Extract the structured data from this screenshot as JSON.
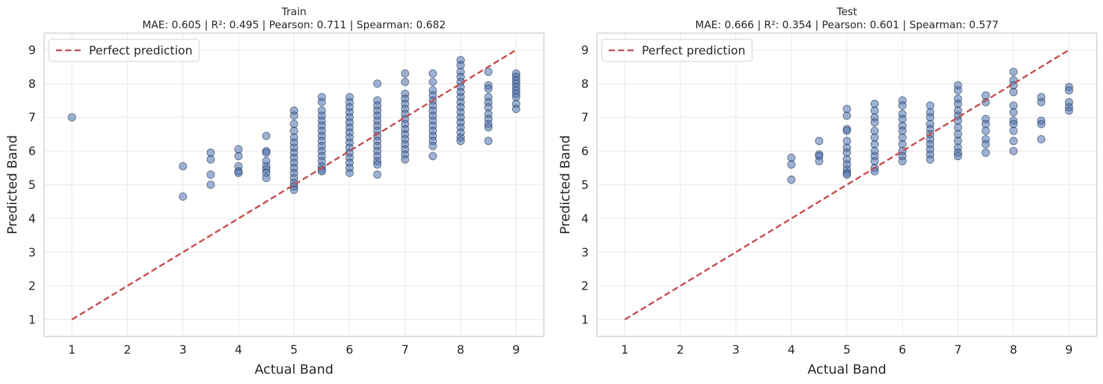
{
  "chart_data": [
    {
      "type": "scatter",
      "title": "Train",
      "subtitle": "MAE: 0.605 | R²: 0.495 | Pearson: 0.711 | Spearman: 0.682",
      "xlabel": "Actual Band",
      "ylabel": "Predicted Band",
      "xlim": [
        0.5,
        9.5
      ],
      "ylim": [
        0.5,
        9.5
      ],
      "xticks": [
        1,
        2,
        3,
        4,
        5,
        6,
        7,
        8,
        9
      ],
      "yticks": [
        1,
        2,
        3,
        4,
        5,
        6,
        7,
        8,
        9
      ],
      "grid": true,
      "legend": {
        "position": "top-left",
        "entries": [
          "Perfect prediction"
        ]
      },
      "reference_line": {
        "name": "Perfect prediction",
        "x": [
          1,
          9
        ],
        "y": [
          1,
          9
        ],
        "color": "#c44e52",
        "style": "dashed"
      },
      "point_color": "#4c72b0",
      "points": [
        [
          1,
          7.0
        ],
        [
          3,
          5.55
        ],
        [
          3,
          4.65
        ],
        [
          3.5,
          5.95
        ],
        [
          3.5,
          5.75
        ],
        [
          3.5,
          5.3
        ],
        [
          3.5,
          5.0
        ],
        [
          4,
          6.05
        ],
        [
          4,
          5.85
        ],
        [
          4,
          5.55
        ],
        [
          4,
          5.4
        ],
        [
          4,
          5.35
        ],
        [
          4.5,
          6.45
        ],
        [
          4.5,
          6.0
        ],
        [
          4.5,
          5.95
        ],
        [
          4.5,
          5.7
        ],
        [
          4.5,
          5.55
        ],
        [
          4.5,
          5.45
        ],
        [
          4.5,
          5.35
        ],
        [
          4.5,
          5.2
        ],
        [
          5,
          7.2
        ],
        [
          5,
          7.05
        ],
        [
          5,
          6.8
        ],
        [
          5,
          6.6
        ],
        [
          5,
          6.4
        ],
        [
          5,
          6.25
        ],
        [
          5,
          6.1
        ],
        [
          5,
          5.95
        ],
        [
          5,
          5.8
        ],
        [
          5,
          5.65
        ],
        [
          5,
          5.5
        ],
        [
          5,
          5.35
        ],
        [
          5,
          5.2
        ],
        [
          5,
          5.05
        ],
        [
          5,
          4.95
        ],
        [
          5,
          4.85
        ],
        [
          5.5,
          7.6
        ],
        [
          5.5,
          7.45
        ],
        [
          5.5,
          7.2
        ],
        [
          5.5,
          7.05
        ],
        [
          5.5,
          6.9
        ],
        [
          5.5,
          6.75
        ],
        [
          5.5,
          6.6
        ],
        [
          5.5,
          6.45
        ],
        [
          5.5,
          6.3
        ],
        [
          5.5,
          6.15
        ],
        [
          5.5,
          6.0
        ],
        [
          5.5,
          5.85
        ],
        [
          5.5,
          5.7
        ],
        [
          5.5,
          5.55
        ],
        [
          5.5,
          5.45
        ],
        [
          5.5,
          5.4
        ],
        [
          6,
          7.6
        ],
        [
          6,
          7.45
        ],
        [
          6,
          7.3
        ],
        [
          6,
          7.15
        ],
        [
          6,
          7.0
        ],
        [
          6,
          6.85
        ],
        [
          6,
          6.7
        ],
        [
          6,
          6.55
        ],
        [
          6,
          6.4
        ],
        [
          6,
          6.25
        ],
        [
          6,
          6.1
        ],
        [
          6,
          5.95
        ],
        [
          6,
          5.8
        ],
        [
          6,
          5.65
        ],
        [
          6,
          5.5
        ],
        [
          6,
          5.35
        ],
        [
          6.5,
          8.0
        ],
        [
          6.5,
          7.5
        ],
        [
          6.5,
          7.35
        ],
        [
          6.5,
          7.2
        ],
        [
          6.5,
          7.05
        ],
        [
          6.5,
          6.9
        ],
        [
          6.5,
          6.75
        ],
        [
          6.5,
          6.6
        ],
        [
          6.5,
          6.45
        ],
        [
          6.5,
          6.3
        ],
        [
          6.5,
          6.15
        ],
        [
          6.5,
          6.0
        ],
        [
          6.5,
          5.85
        ],
        [
          6.5,
          5.7
        ],
        [
          6.5,
          5.6
        ],
        [
          6.5,
          5.3
        ],
        [
          7,
          8.3
        ],
        [
          7,
          8.05
        ],
        [
          7,
          7.7
        ],
        [
          7,
          7.55
        ],
        [
          7,
          7.4
        ],
        [
          7,
          7.25
        ],
        [
          7,
          7.1
        ],
        [
          7,
          6.95
        ],
        [
          7,
          6.8
        ],
        [
          7,
          6.65
        ],
        [
          7,
          6.5
        ],
        [
          7,
          6.35
        ],
        [
          7,
          6.2
        ],
        [
          7,
          6.05
        ],
        [
          7,
          5.9
        ],
        [
          7,
          5.75
        ],
        [
          7.5,
          8.3
        ],
        [
          7.5,
          8.05
        ],
        [
          7.5,
          7.8
        ],
        [
          7.5,
          7.65
        ],
        [
          7.5,
          7.5
        ],
        [
          7.5,
          7.35
        ],
        [
          7.5,
          7.2
        ],
        [
          7.5,
          7.05
        ],
        [
          7.5,
          6.9
        ],
        [
          7.5,
          6.75
        ],
        [
          7.5,
          6.6
        ],
        [
          7.5,
          6.45
        ],
        [
          7.5,
          6.3
        ],
        [
          7.5,
          6.15
        ],
        [
          7.5,
          5.85
        ],
        [
          8,
          8.7
        ],
        [
          8,
          8.55
        ],
        [
          8,
          8.35
        ],
        [
          8,
          8.2
        ],
        [
          8,
          8.05
        ],
        [
          8,
          7.9
        ],
        [
          8,
          7.75
        ],
        [
          8,
          7.6
        ],
        [
          8,
          7.45
        ],
        [
          8,
          7.3
        ],
        [
          8,
          7.15
        ],
        [
          8,
          7.0
        ],
        [
          8,
          6.85
        ],
        [
          8,
          6.7
        ],
        [
          8,
          6.55
        ],
        [
          8,
          6.4
        ],
        [
          8,
          6.3
        ],
        [
          8.5,
          8.35
        ],
        [
          8.5,
          7.95
        ],
        [
          8.5,
          7.85
        ],
        [
          8.5,
          7.6
        ],
        [
          8.5,
          7.45
        ],
        [
          8.5,
          7.3
        ],
        [
          8.5,
          7.1
        ],
        [
          8.5,
          6.95
        ],
        [
          8.5,
          6.8
        ],
        [
          8.5,
          6.7
        ],
        [
          8.5,
          6.3
        ],
        [
          9,
          8.3
        ],
        [
          9,
          8.2
        ],
        [
          9,
          8.1
        ],
        [
          9,
          8.0
        ],
        [
          9,
          7.9
        ],
        [
          9,
          7.8
        ],
        [
          9,
          7.7
        ],
        [
          9,
          7.6
        ],
        [
          9,
          7.4
        ],
        [
          9,
          7.25
        ]
      ]
    },
    {
      "type": "scatter",
      "title": "Test",
      "subtitle": "MAE: 0.666 | R²: 0.354 | Pearson: 0.601 | Spearman: 0.577",
      "xlabel": "Actual Band",
      "ylabel": "Predicted Band",
      "xlim": [
        0.5,
        9.5
      ],
      "ylim": [
        0.5,
        9.5
      ],
      "xticks": [
        1,
        2,
        3,
        4,
        5,
        6,
        7,
        8,
        9
      ],
      "yticks": [
        1,
        2,
        3,
        4,
        5,
        6,
        7,
        8,
        9
      ],
      "grid": true,
      "legend": {
        "position": "top-left",
        "entries": [
          "Perfect prediction"
        ]
      },
      "reference_line": {
        "name": "Perfect prediction",
        "x": [
          1,
          9
        ],
        "y": [
          1,
          9
        ],
        "color": "#c44e52",
        "style": "dashed"
      },
      "point_color": "#4c72b0",
      "points": [
        [
          4,
          5.8
        ],
        [
          4,
          5.6
        ],
        [
          4,
          5.15
        ],
        [
          4.5,
          6.3
        ],
        [
          4.5,
          5.9
        ],
        [
          4.5,
          5.85
        ],
        [
          4.5,
          5.7
        ],
        [
          5,
          7.25
        ],
        [
          5,
          7.05
        ],
        [
          5,
          6.65
        ],
        [
          5,
          6.6
        ],
        [
          5,
          6.3
        ],
        [
          5,
          6.1
        ],
        [
          5,
          5.95
        ],
        [
          5,
          5.75
        ],
        [
          5,
          5.6
        ],
        [
          5,
          5.45
        ],
        [
          5,
          5.35
        ],
        [
          5,
          5.3
        ],
        [
          5.5,
          7.4
        ],
        [
          5.5,
          7.2
        ],
        [
          5.5,
          7.0
        ],
        [
          5.5,
          6.85
        ],
        [
          5.5,
          6.6
        ],
        [
          5.5,
          6.4
        ],
        [
          5.5,
          6.2
        ],
        [
          5.5,
          6.0
        ],
        [
          5.5,
          5.85
        ],
        [
          5.5,
          5.7
        ],
        [
          5.5,
          5.5
        ],
        [
          5.5,
          5.4
        ],
        [
          6,
          7.5
        ],
        [
          6,
          7.35
        ],
        [
          6,
          7.1
        ],
        [
          6,
          6.95
        ],
        [
          6,
          6.75
        ],
        [
          6,
          6.6
        ],
        [
          6,
          6.4
        ],
        [
          6,
          6.2
        ],
        [
          6,
          6.0
        ],
        [
          6,
          5.85
        ],
        [
          6,
          5.7
        ],
        [
          6.5,
          7.35
        ],
        [
          6.5,
          7.15
        ],
        [
          6.5,
          7.0
        ],
        [
          6.5,
          6.8
        ],
        [
          6.5,
          6.65
        ],
        [
          6.5,
          6.5
        ],
        [
          6.5,
          6.35
        ],
        [
          6.5,
          6.2
        ],
        [
          6.5,
          6.05
        ],
        [
          6.5,
          5.9
        ],
        [
          6.5,
          5.75
        ],
        [
          7,
          7.95
        ],
        [
          7,
          7.8
        ],
        [
          7,
          7.55
        ],
        [
          7,
          7.4
        ],
        [
          7,
          7.2
        ],
        [
          7,
          7.05
        ],
        [
          7,
          6.9
        ],
        [
          7,
          6.7
        ],
        [
          7,
          6.5
        ],
        [
          7,
          6.3
        ],
        [
          7,
          6.1
        ],
        [
          7,
          5.95
        ],
        [
          7,
          5.85
        ],
        [
          7.5,
          7.65
        ],
        [
          7.5,
          7.45
        ],
        [
          7.5,
          6.95
        ],
        [
          7.5,
          6.8
        ],
        [
          7.5,
          6.6
        ],
        [
          7.5,
          6.35
        ],
        [
          7.5,
          6.2
        ],
        [
          7.5,
          5.95
        ],
        [
          8,
          8.35
        ],
        [
          8,
          8.1
        ],
        [
          8,
          7.95
        ],
        [
          8,
          7.75
        ],
        [
          8,
          7.35
        ],
        [
          8,
          7.15
        ],
        [
          8,
          6.9
        ],
        [
          8,
          6.8
        ],
        [
          8,
          6.6
        ],
        [
          8,
          6.3
        ],
        [
          8,
          6.0
        ],
        [
          8.5,
          7.6
        ],
        [
          8.5,
          7.45
        ],
        [
          8.5,
          6.9
        ],
        [
          8.5,
          6.8
        ],
        [
          8.5,
          6.35
        ],
        [
          9,
          7.9
        ],
        [
          9,
          7.8
        ],
        [
          9,
          7.45
        ],
        [
          9,
          7.3
        ],
        [
          9,
          7.2
        ]
      ]
    }
  ]
}
